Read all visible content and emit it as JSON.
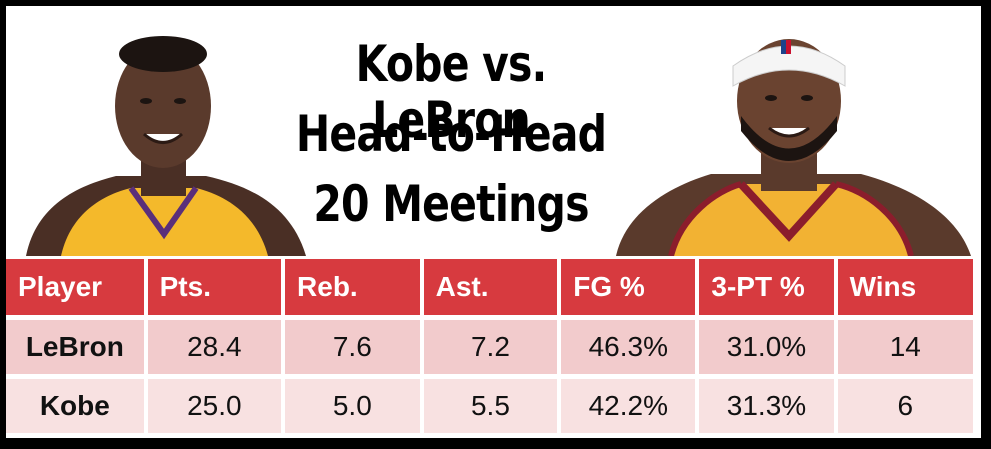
{
  "title": {
    "line1": "Kobe vs. LeBron",
    "line2": "Head-to-Head",
    "line3": "20 Meetings"
  },
  "photos": {
    "left": "Kobe Bryant portrait",
    "right": "LeBron James portrait"
  },
  "colors": {
    "header_bg": "#d73a3f",
    "row_odd": "#f2cbcc",
    "row_even": "#f8e1e1",
    "lakers_gold": "#f4b92b",
    "cavs_gold": "#f2b233",
    "cavs_wine": "#8b1d2c"
  },
  "table": {
    "headers": [
      "Player",
      "Pts.",
      "Reb.",
      "Ast.",
      "FG %",
      "3-PT %",
      "Wins"
    ],
    "rows": [
      [
        "LeBron",
        "28.4",
        "7.6",
        "7.2",
        "46.3%",
        "31.0%",
        "14"
      ],
      [
        "Kobe",
        "25.0",
        "5.0",
        "5.5",
        "42.2%",
        "31.3%",
        "6"
      ]
    ]
  }
}
